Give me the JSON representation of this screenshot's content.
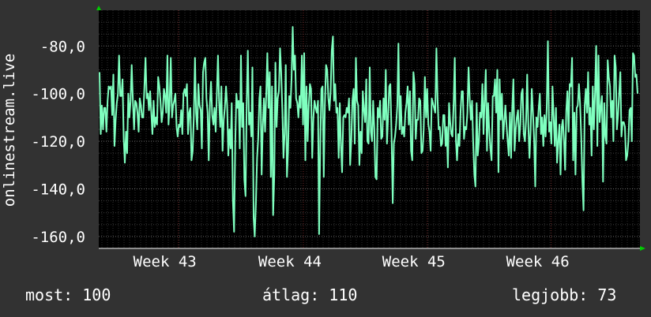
{
  "chart_data": {
    "type": "line",
    "ylabel": "onlinestream.live",
    "ylim": [
      -165,
      -65
    ],
    "yticks": [
      "-80,0",
      "-100,0",
      "-120,0",
      "-140,0",
      "-160,0"
    ],
    "ytick_values": [
      -80,
      -100,
      -120,
      -140,
      -160
    ],
    "xticks": [
      "Week 43",
      "Week 44",
      "Week 45",
      "Week 46"
    ],
    "xtick_positions": [
      0.147,
      0.378,
      0.607,
      0.836
    ],
    "grid": true,
    "series": [
      {
        "color": "#7fffbf",
        "values": [
          -91,
          -117,
          -105,
          -115,
          -106,
          -106,
          -116,
          -103,
          -97,
          -98,
          -97,
          -109,
          -92,
          -122,
          -111,
          -104,
          -100,
          -84,
          -101,
          -101,
          -94,
          -119,
          -129,
          -116,
          -125,
          -100,
          -110,
          -103,
          -88,
          -103,
          -115,
          -103,
          -104,
          -108,
          -116,
          -102,
          -105,
          -110,
          -110,
          -97,
          -85,
          -102,
          -100,
          -107,
          -99,
          -108,
          -117,
          -103,
          -114,
          -110,
          -113,
          -93,
          -97,
          -103,
          -112,
          -108,
          -98,
          -101,
          -108,
          -84,
          -113,
          -103,
          -85,
          -110,
          -105,
          -103,
          -100,
          -114,
          -118,
          -113,
          -114,
          -107,
          -117,
          -100,
          -98,
          -101,
          -96,
          -117,
          -108,
          -106,
          -128,
          -124,
          -110,
          -85,
          -108,
          -115,
          -96,
          -105,
          -107,
          -123,
          -91,
          -87,
          -85,
          -102,
          -108,
          -128,
          -104,
          -95,
          -109,
          -113,
          -106,
          -116,
          -101,
          -84,
          -103,
          -114,
          -97,
          -124,
          -111,
          -106,
          -97,
          -105,
          -126,
          -115,
          -123,
          -104,
          -145,
          -158,
          -122,
          -100,
          -106,
          -103,
          -123,
          -84,
          -114,
          -104,
          -136,
          -143,
          -103,
          -82,
          -113,
          -108,
          -118,
          -89,
          -152,
          -160,
          -146,
          -127,
          -119,
          -102,
          -97,
          -134,
          -114,
          -102,
          -116,
          -100,
          -83,
          -106,
          -91,
          -135,
          -97,
          -151,
          -134,
          -87,
          -114,
          -102,
          -99,
          -81,
          -91,
          -107,
          -127,
          -117,
          -88,
          -135,
          -124,
          -101,
          -106,
          -94,
          -72,
          -90,
          -84,
          -102,
          -104,
          -110,
          -101,
          -106,
          -84,
          -113,
          -83,
          -128,
          -97,
          -120,
          -105,
          -96,
          -98,
          -127,
          -110,
          -103,
          -106,
          -108,
          -103,
          -159,
          -121,
          -98,
          -97,
          -135,
          -105,
          -88,
          -90,
          -102,
          -107,
          -99,
          -82,
          -76,
          -103,
          -96,
          -108,
          -106,
          -127,
          -104,
          -122,
          -133,
          -110,
          -109,
          -110,
          -106,
          -108,
          -102,
          -130,
          -119,
          -103,
          -98,
          -121,
          -85,
          -103,
          -105,
          -130,
          -116,
          -125,
          -99,
          -107,
          -112,
          -94,
          -120,
          -121,
          -89,
          -116,
          -120,
          -103,
          -115,
          -135,
          -136,
          -106,
          -110,
          -103,
          -119,
          -118,
          -102,
          -111,
          -90,
          -121,
          -110,
          -97,
          -96,
          -117,
          -146,
          -121,
          -118,
          -113,
          -105,
          -79,
          -115,
          -101,
          -117,
          -114,
          -118,
          -108,
          -104,
          -97,
          -113,
          -99,
          -124,
          -128,
          -91,
          -96,
          -119,
          -111,
          -111,
          -102,
          -103,
          -125,
          -124,
          -115,
          -93,
          -110,
          -98,
          -113,
          -116,
          -124,
          -102,
          -104,
          -106,
          -108,
          -81,
          -102,
          -115,
          -114,
          -122,
          -121,
          -109,
          -109,
          -122,
          -114,
          -131,
          -104,
          -112,
          -117,
          -118,
          -104,
          -85,
          -120,
          -128,
          -117,
          -122,
          -108,
          -99,
          -99,
          -119,
          -114,
          -115,
          -108,
          -89,
          -103,
          -111,
          -103,
          -120,
          -134,
          -139,
          -104,
          -126,
          -120,
          -108,
          -110,
          -96,
          -117,
          -102,
          -90,
          -124,
          -104,
          -116,
          -123,
          -128,
          -101,
          -101,
          -94,
          -108,
          -90,
          -133,
          -94,
          -111,
          -100,
          -119,
          -112,
          -105,
          -113,
          -120,
          -126,
          -108,
          -127,
          -106,
          -94,
          -124,
          -115,
          -110,
          -107,
          -120,
          -113,
          -100,
          -98,
          -117,
          -120,
          -111,
          -92,
          -114,
          -127,
          -115,
          -98,
          -108,
          -119,
          -139,
          -110,
          -114,
          -106,
          -100,
          -117,
          -110,
          -122,
          -109,
          -118,
          -106,
          -78,
          -116,
          -112,
          -121,
          -97,
          -110,
          -122,
          -106,
          -129,
          -120,
          -113,
          -134,
          -114,
          -111,
          -120,
          -132,
          -107,
          -99,
          -116,
          -96,
          -97,
          -85,
          -128,
          -108,
          -134,
          -106,
          -105,
          -96,
          -104,
          -118,
          -137,
          -149,
          -105,
          -98,
          -108,
          -91,
          -113,
          -106,
          -126,
          -97,
          -115,
          -99,
          -80,
          -122,
          -84,
          -112,
          -106,
          -101,
          -137,
          -104,
          -118,
          -121,
          -86,
          -93,
          -97,
          -110,
          -103,
          -120,
          -84,
          -89,
          -115,
          -109,
          -100,
          -91,
          -118,
          -112,
          -112,
          -114,
          -128,
          -126,
          -120,
          -107,
          -106,
          -120,
          -83,
          -84,
          -93,
          -92,
          -100
        ]
      }
    ]
  },
  "footer": {
    "current": "most: 100",
    "average": "átlag: 110",
    "best": "legjobb: 73"
  },
  "colors": {
    "background": "#323232",
    "plot_background": "#000000",
    "grid": "#5a5a5a",
    "vgrid": "#702828",
    "line": "#7fffbf",
    "arrow": "#00cc00"
  }
}
